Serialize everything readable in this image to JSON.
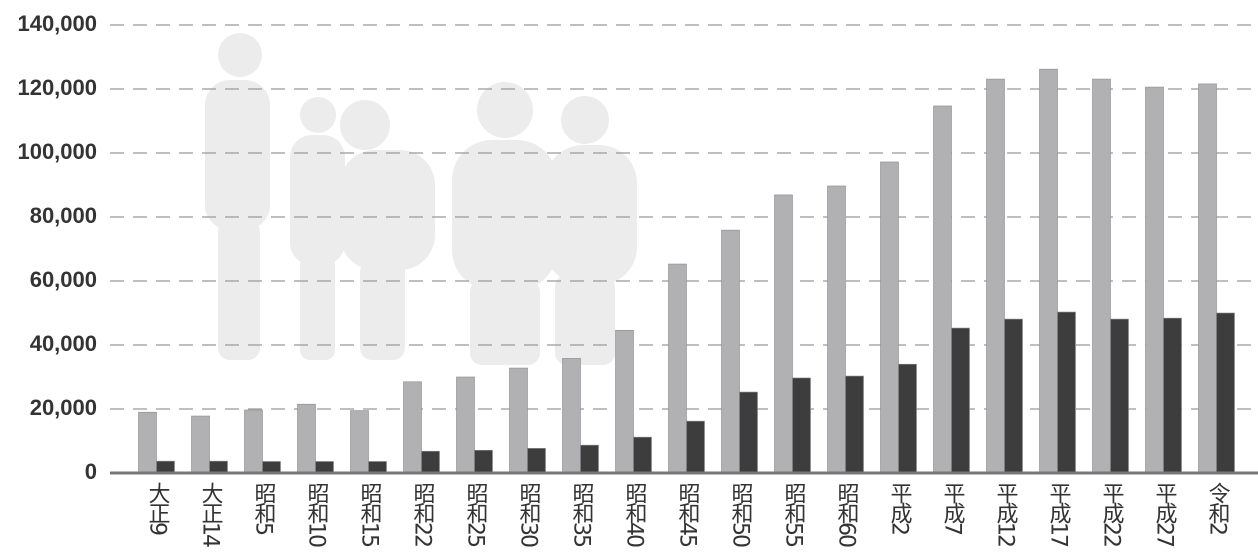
{
  "chart_data": {
    "type": "bar",
    "categories": [
      "大正9",
      "大正14",
      "昭和5",
      "昭和10",
      "昭和15",
      "昭和22",
      "昭和25",
      "昭和30",
      "昭和35",
      "昭和40",
      "昭和45",
      "昭和50",
      "昭和55",
      "昭和60",
      "平成2",
      "平成7",
      "平成12",
      "平成17",
      "平成22",
      "平成27",
      "令和2"
    ],
    "series": [
      {
        "color": "#b1b1b4",
        "values": [
          19000,
          17800,
          19700,
          21500,
          19500,
          28500,
          30000,
          32800,
          35800,
          44600,
          65300,
          75900,
          86900,
          89700,
          97200,
          114700,
          123100,
          126200,
          123100,
          120600,
          121600
        ]
      },
      {
        "color": "#3d3d3d",
        "values": [
          3700,
          3700,
          3600,
          3600,
          3600,
          6800,
          7100,
          7700,
          8700,
          11200,
          16200,
          25300,
          29700,
          30300,
          34000,
          45300,
          48100,
          50300,
          48100,
          48400,
          50000
        ]
      }
    ],
    "ylim": [
      0,
      140000
    ],
    "yticks": [
      0,
      {
        "value": 20000,
        "label": "20,000"
      },
      {
        "value": 40000,
        "label": "40,000"
      },
      {
        "value": 60000,
        "label": "60,000"
      },
      {
        "value": 80000,
        "label": "80,000"
      },
      {
        "value": 100000,
        "label": "100,000"
      },
      {
        "value": 120000,
        "label": "120,000"
      },
      {
        "value": 140000,
        "label": "140,000"
      }
    ],
    "grid": true
  }
}
